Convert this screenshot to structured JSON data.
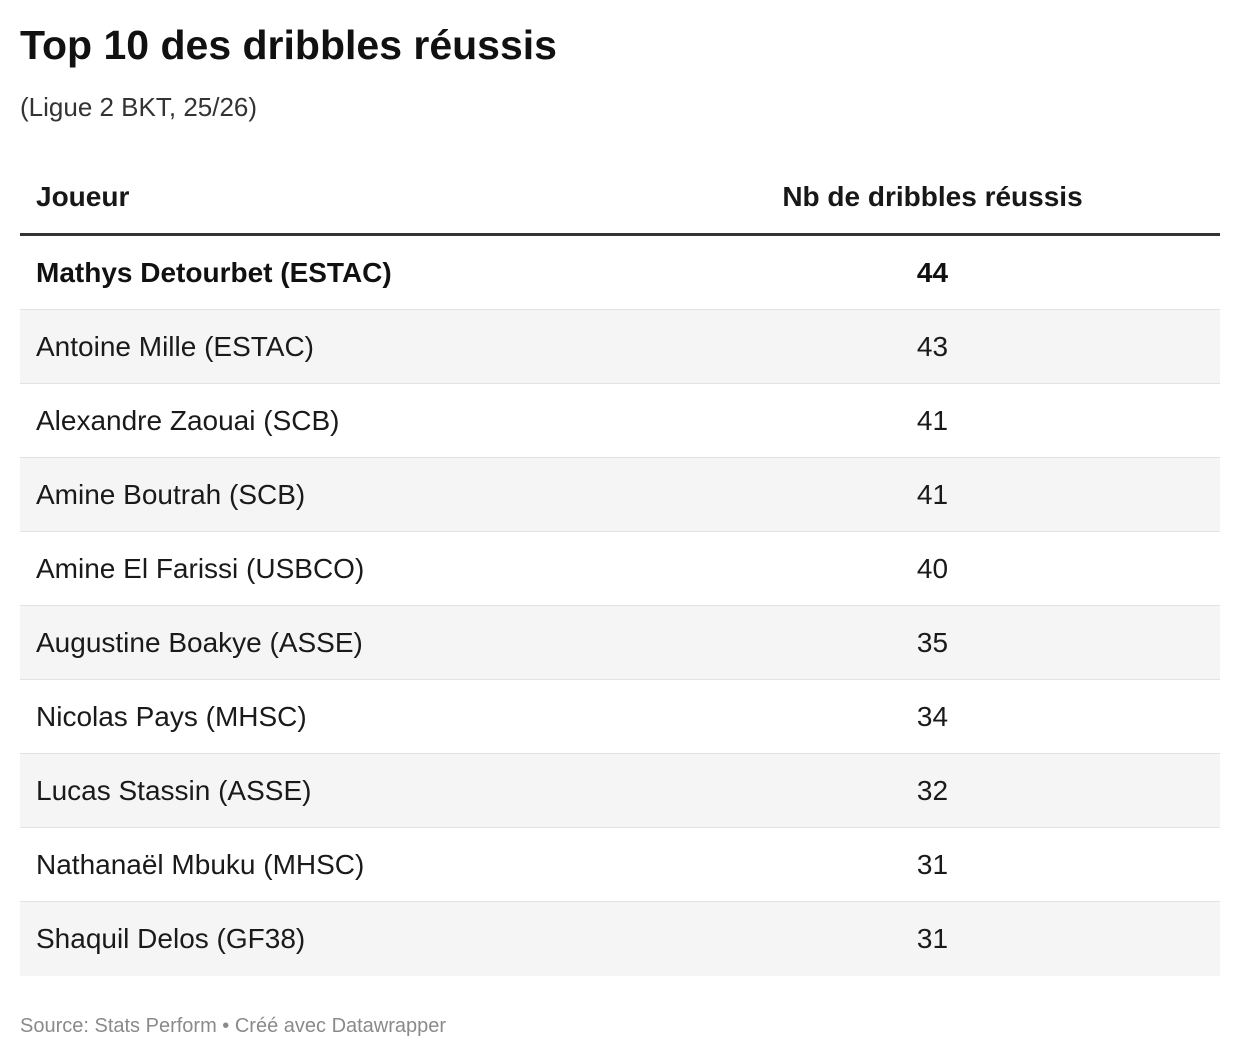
{
  "title": "Top 10 des dribbles réussis",
  "subtitle": "(Ligue 2 BKT, 25/26)",
  "table": {
    "headers": [
      "Joueur",
      "Nb de dribbles réussis"
    ]
  },
  "chart_data": {
    "type": "table",
    "title": "Top 10 des dribbles réussis",
    "subtitle": "(Ligue 2 BKT, 25/26)",
    "columns": [
      "Joueur",
      "Nb de dribbles réussis"
    ],
    "rows": [
      {
        "player": "Mathys Detourbet (ESTAC)",
        "value": 44
      },
      {
        "player": "Antoine Mille (ESTAC)",
        "value": 43
      },
      {
        "player": "Alexandre Zaouai (SCB)",
        "value": 41
      },
      {
        "player": "Amine Boutrah (SCB)",
        "value": 41
      },
      {
        "player": "Amine El Farissi (USBCO)",
        "value": 40
      },
      {
        "player": "Augustine Boakye (ASSE)",
        "value": 35
      },
      {
        "player": "Nicolas Pays (MHSC)",
        "value": 34
      },
      {
        "player": "Lucas Stassin (ASSE)",
        "value": 32
      },
      {
        "player": "Nathanaël Mbuku (MHSC)",
        "value": 31
      },
      {
        "player": "Shaquil Delos (GF38)",
        "value": 31
      }
    ],
    "highlighted_row": 0
  },
  "footer": "Source: Stats Perform • Créé avec Datawrapper",
  "colors": {
    "row_alt": "#f5f5f5",
    "rule": "#333333",
    "footer_text": "#8a8a8a"
  }
}
